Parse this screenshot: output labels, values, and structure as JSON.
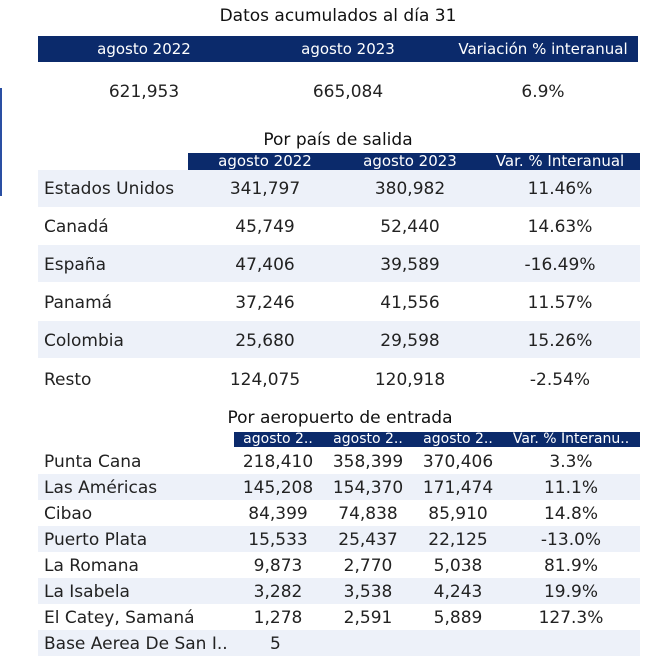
{
  "summary": {
    "title": "Datos acumulados al día 31",
    "headers": [
      "agosto 2022",
      "agosto 2023",
      "Variación % interanual"
    ],
    "values": [
      "621,953",
      "665,084",
      "6.9%"
    ]
  },
  "by_country": {
    "title": "Por país de salida",
    "headers": [
      "agosto 2022",
      "agosto 2023",
      "Var. % Interanual"
    ],
    "rows": [
      {
        "label": "Estados Unidos",
        "v1": "341,797",
        "v2": "380,982",
        "var": "11.46%"
      },
      {
        "label": "Canadá",
        "v1": "45,749",
        "v2": "52,440",
        "var": "14.63%"
      },
      {
        "label": "España",
        "v1": "47,406",
        "v2": "39,589",
        "var": "-16.49%"
      },
      {
        "label": "Panamá",
        "v1": "37,246",
        "v2": "41,556",
        "var": "11.57%"
      },
      {
        "label": "Colombia",
        "v1": "25,680",
        "v2": "29,598",
        "var": "15.26%"
      },
      {
        "label": "Resto",
        "v1": "124,075",
        "v2": "120,918",
        "var": "-2.54%"
      }
    ]
  },
  "by_airport": {
    "title": "Por aeropuerto de entrada",
    "headers": [
      "agosto 2..",
      "agosto 2..",
      "agosto 2..",
      "Var. % Interanu.."
    ],
    "rows": [
      {
        "label": "Punta Cana",
        "v1": "218,410",
        "v2": "358,399",
        "v3": "370,406",
        "var": "3.3%"
      },
      {
        "label": "Las Américas",
        "v1": "145,208",
        "v2": "154,370",
        "v3": "171,474",
        "var": "11.1%"
      },
      {
        "label": "Cibao",
        "v1": "84,399",
        "v2": "74,838",
        "v3": "85,910",
        "var": "14.8%"
      },
      {
        "label": "Puerto Plata",
        "v1": "15,533",
        "v2": "25,437",
        "v3": "22,125",
        "var": "-13.0%"
      },
      {
        "label": "La Romana",
        "v1": "9,873",
        "v2": "2,770",
        "v3": "5,038",
        "var": "81.9%"
      },
      {
        "label": "La Isabela",
        "v1": "3,282",
        "v2": "3,538",
        "v3": "4,243",
        "var": "19.9%"
      },
      {
        "label": "El Catey, Samaná",
        "v1": "1,278",
        "v2": "2,591",
        "v3": "5,889",
        "var": "127.3%"
      },
      {
        "label": "Base Aerea De San I..",
        "v1": "5",
        "v2": "",
        "v3": "",
        "var": ""
      }
    ]
  },
  "colors": {
    "header": "#0b2a6b",
    "band": "#edf1f9"
  }
}
